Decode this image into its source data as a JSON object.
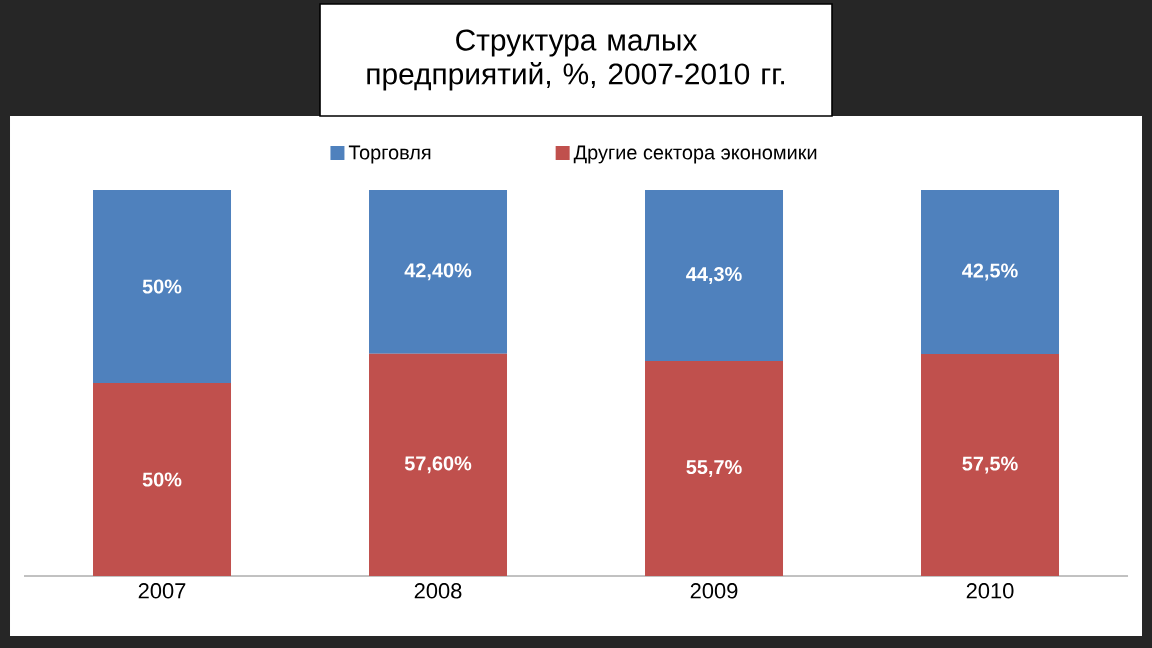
{
  "chart_data": {
    "type": "bar",
    "title": "Структура малых предприятий, %, 2007-2010 гг.",
    "categories": [
      "2007",
      "2008",
      "2009",
      "2010"
    ],
    "stacked": true,
    "ylim": [
      0,
      100
    ],
    "tick_labels": "x",
    "legend": "top",
    "series": [
      {
        "name": "Другие сектора экономики",
        "color": "#c0504d",
        "values": [
          50,
          57.6,
          55.7,
          57.5
        ],
        "value_labels": [
          "50%",
          "57,60%",
          "55,7%",
          "57,5%"
        ]
      },
      {
        "name": "Торговля",
        "color": "#4f81bd",
        "values": [
          50,
          42.4,
          44.3,
          42.5
        ],
        "value_labels": [
          "50%",
          "42,40%",
          "44,3%",
          "42,5%"
        ]
      }
    ]
  }
}
